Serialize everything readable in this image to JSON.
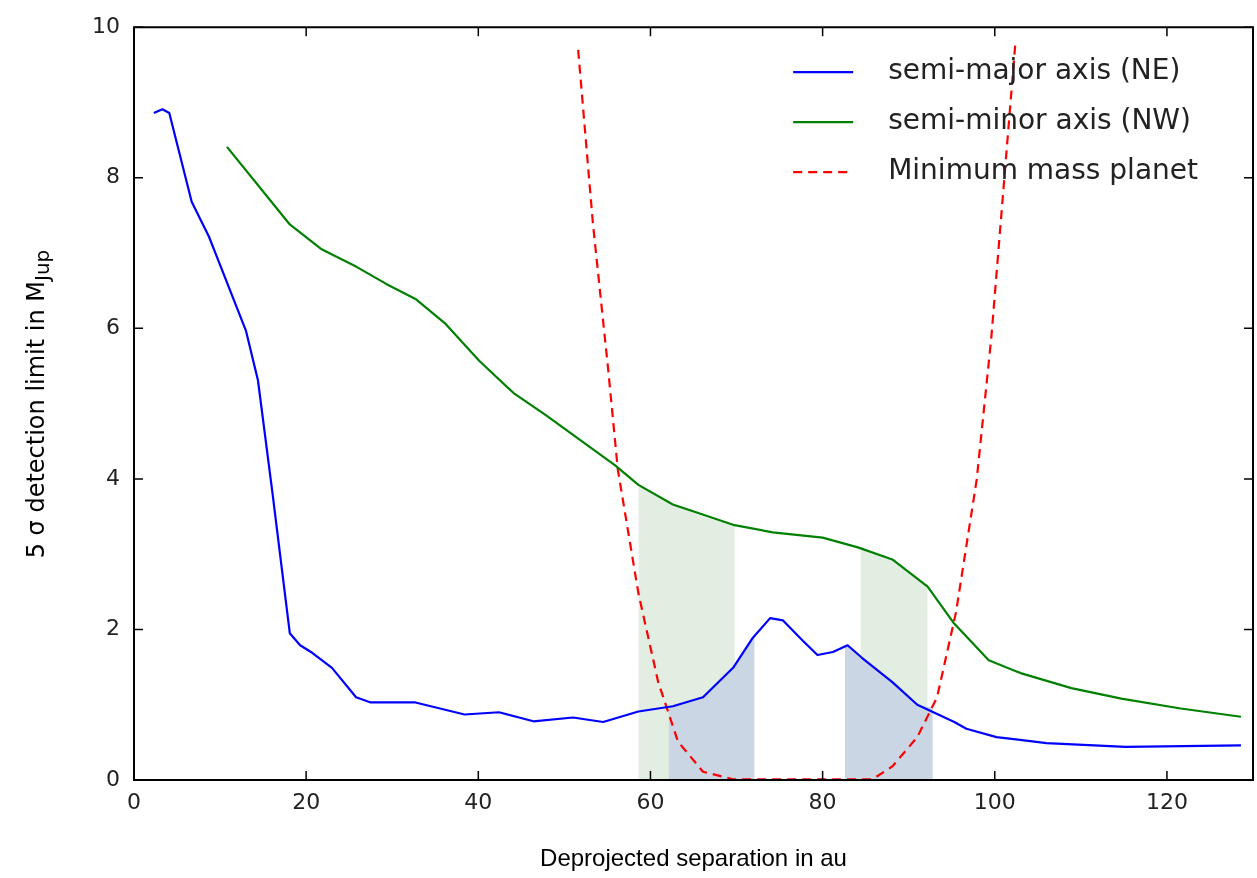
{
  "chart_data": {
    "type": "line",
    "xlabel": "Deprojected separation in au",
    "ylabel": "5 σ detection limit in M$_{Jup}$",
    "xlim": [
      0,
      130
    ],
    "ylim": [
      0,
      10
    ],
    "xticks": [
      0,
      20,
      40,
      60,
      80,
      100,
      120
    ],
    "yticks": [
      0,
      2,
      4,
      6,
      8,
      10
    ],
    "grid": false,
    "legend": "top right",
    "marker": "none",
    "series": [
      {
        "type": "area",
        "color": "#e1eee1",
        "x": [
          58.6,
          62.6,
          66,
          69.8
        ],
        "values": [
          3.92,
          3.66,
          3.5,
          3.38
        ]
      },
      {
        "type": "area",
        "color": "#e1eee1",
        "x": [
          84.4,
          88.1,
          92.2
        ],
        "values": [
          3.08,
          2.93,
          2.57
        ]
      },
      {
        "type": "area",
        "color": "#cad6e4",
        "x": [
          62.1,
          62.6,
          66.1,
          69.6,
          72.1
        ],
        "values": [
          0.95,
          0.98,
          1.1,
          1.49,
          1.92
        ]
      },
      {
        "type": "area",
        "color": "#cad6e4",
        "x": [
          82.6,
          82.9,
          84.6,
          88.1,
          91,
          92.8
        ],
        "values": [
          1.78,
          1.79,
          1.62,
          1.3,
          1.0,
          0.96
        ]
      },
      {
        "name": "semi-major axis (NE)",
        "color": "#0000ff",
        "line_style": "solid",
        "x": [
          2.3,
          3.3,
          4.1,
          6.7,
          8.7,
          13,
          14.4,
          16.1,
          18.1,
          19.3,
          20.7,
          23,
          25.8,
          27.5,
          32.7,
          38.4,
          42.4,
          46.4,
          51,
          54.5,
          58.6,
          62.6,
          66.1,
          69.6,
          71.9,
          73.9,
          75.4,
          77.7,
          79.4,
          81.2,
          82.9,
          84.6,
          88.1,
          91,
          95.3,
          96.7,
          100.2,
          106,
          115.2,
          128.6
        ],
        "values": [
          8.86,
          8.91,
          8.86,
          7.68,
          7.22,
          5.97,
          5.31,
          3.8,
          1.95,
          1.79,
          1.69,
          1.49,
          1.1,
          1.03,
          1.03,
          0.87,
          0.9,
          0.78,
          0.83,
          0.77,
          0.91,
          0.98,
          1.1,
          1.49,
          1.89,
          2.15,
          2.12,
          1.85,
          1.66,
          1.7,
          1.79,
          1.62,
          1.3,
          1.0,
          0.77,
          0.68,
          0.57,
          0.49,
          0.44,
          0.46
        ]
      },
      {
        "name": "semi-minor axis (NW)",
        "color": "#008000",
        "line_style": "solid",
        "x": [
          10.8,
          18.1,
          21.8,
          25.8,
          29.3,
          32.7,
          36.1,
          40.1,
          44.1,
          47.8,
          55.9,
          58.6,
          62.6,
          69.6,
          74.2,
          80,
          84.1,
          88.1,
          92.2,
          95.2,
          99.3,
          103,
          108.9,
          114.7,
          121.6,
          128.6
        ],
        "values": [
          8.41,
          7.38,
          7.05,
          6.82,
          6.59,
          6.39,
          6.07,
          5.57,
          5.14,
          4.85,
          4.18,
          3.92,
          3.66,
          3.39,
          3.29,
          3.22,
          3.09,
          2.93,
          2.57,
          2.09,
          1.59,
          1.42,
          1.22,
          1.08,
          0.95,
          0.84
        ]
      },
      {
        "name": "Minimum mass planet",
        "color": "#ff0000",
        "line_style": "dashed",
        "x": [
          51.6,
          53.3,
          55.1,
          56.2,
          58.6,
          60.9,
          63.2,
          66.1,
          69.6,
          85.8,
          88.1,
          91,
          93.3,
          95.5,
          97.9,
          99.6,
          101,
          102.4
        ],
        "values": [
          9.7,
          7.41,
          5.44,
          4.13,
          2.48,
          1.3,
          0.51,
          0.11,
          0.01,
          0.01,
          0.18,
          0.57,
          1.1,
          2.23,
          3.99,
          5.88,
          7.84,
          9.8
        ]
      }
    ]
  }
}
